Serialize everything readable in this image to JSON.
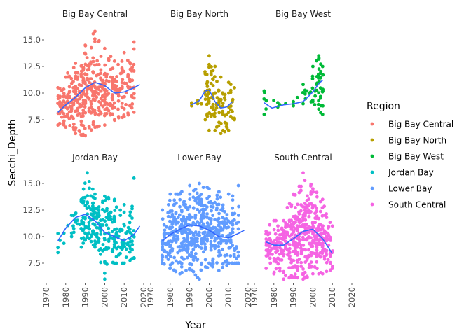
{
  "chart_data": {
    "type": "scatter",
    "xlabel": "Year",
    "ylabel": "Secchi_Depth",
    "xlim": [
      1967,
      2023
    ],
    "ylim": [
      5.5,
      16.3
    ],
    "x_ticks": [
      1970,
      1980,
      1990,
      2000,
      2010,
      2020
    ],
    "y_ticks": [
      7.5,
      10.0,
      12.5,
      15.0
    ],
    "y_tick_labels": [
      "7.5",
      "10.0",
      "12.5",
      "15.0"
    ],
    "smooth_color": "#3366FF",
    "legend": {
      "title": "Region",
      "position": "right"
    },
    "panels": [
      {
        "name": "Big Bay Central",
        "color": "#F8766D",
        "summary": [
          [
            1976,
            8.5,
            7.0,
            10.5,
            24
          ],
          [
            1980,
            9.0,
            6.8,
            11.5,
            45
          ],
          [
            1985,
            9.6,
            6.2,
            12.8,
            60
          ],
          [
            1990,
            10.2,
            6.0,
            14.5,
            90
          ],
          [
            1995,
            10.6,
            6.8,
            15.8,
            70
          ],
          [
            2000,
            10.3,
            7.0,
            14.2,
            55
          ],
          [
            2005,
            10.0,
            7.5,
            13.0,
            45
          ],
          [
            2010,
            10.2,
            7.8,
            13.8,
            40
          ],
          [
            2015,
            10.6,
            8.2,
            14.8,
            28
          ]
        ],
        "smooth": [
          [
            1976,
            8.2
          ],
          [
            1980,
            8.9
          ],
          [
            1985,
            9.6
          ],
          [
            1990,
            10.5
          ],
          [
            1995,
            11.0
          ],
          [
            2000,
            10.7
          ],
          [
            2005,
            10.0
          ],
          [
            2010,
            10.1
          ],
          [
            2015,
            10.5
          ],
          [
            2018,
            10.8
          ]
        ]
      },
      {
        "name": "Big Bay North",
        "color": "#B79F00",
        "summary": [
          [
            1991,
            8.9,
            8.8,
            9.0,
            2
          ],
          [
            1998,
            9.5,
            7.5,
            11.8,
            10
          ],
          [
            2000,
            10.0,
            6.5,
            13.5,
            30
          ],
          [
            2003,
            9.5,
            6.5,
            12.5,
            25
          ],
          [
            2006,
            8.8,
            6.2,
            11.5,
            22
          ],
          [
            2010,
            8.8,
            6.5,
            11.0,
            20
          ],
          [
            2013,
            9.0,
            7.5,
            10.5,
            8
          ]
        ],
        "smooth": [
          [
            1991,
            8.9
          ],
          [
            1995,
            9.3
          ],
          [
            1998,
            10.2
          ],
          [
            2000,
            10.3
          ],
          [
            2003,
            9.2
          ],
          [
            2006,
            8.6
          ],
          [
            2009,
            8.7
          ],
          [
            2012,
            9.2
          ]
        ]
      },
      {
        "name": "Big Bay West",
        "color": "#00BA38",
        "summary": [
          [
            1975,
            9.2,
            8.0,
            10.2,
            8
          ],
          [
            1982,
            8.9,
            8.7,
            9.1,
            2
          ],
          [
            1990,
            9.0,
            8.8,
            9.2,
            2
          ],
          [
            1995,
            9.8,
            9.0,
            10.8,
            3
          ],
          [
            2000,
            10.5,
            9.2,
            12.5,
            10
          ],
          [
            2003,
            11.0,
            8.5,
            13.5,
            25
          ],
          [
            2005,
            10.2,
            8.0,
            12.5,
            18
          ]
        ],
        "smooth": [
          [
            1975,
            9.1
          ],
          [
            1979,
            8.6
          ],
          [
            1985,
            8.9
          ],
          [
            1990,
            9.0
          ],
          [
            1995,
            9.2
          ],
          [
            2000,
            10.1
          ],
          [
            2003,
            10.9
          ],
          [
            2005,
            11.2
          ]
        ]
      },
      {
        "name": "Jordan Bay",
        "color": "#00BFC4",
        "summary": [
          [
            1976,
            9.0,
            8.5,
            10.3,
            5
          ],
          [
            1983,
            11.0,
            10.0,
            12.0,
            4
          ],
          [
            1988,
            11.8,
            9.0,
            13.5,
            20
          ],
          [
            1991,
            12.2,
            10.0,
            16.0,
            55
          ],
          [
            1995,
            11.5,
            9.0,
            14.0,
            45
          ],
          [
            2000,
            10.4,
            6.0,
            13.8,
            40
          ],
          [
            2005,
            10.2,
            7.5,
            13.5,
            50
          ],
          [
            2010,
            9.8,
            7.5,
            13.0,
            40
          ],
          [
            2015,
            10.5,
            8.0,
            15.5,
            30
          ]
        ],
        "smooth": [
          [
            1976,
            9.6
          ],
          [
            1980,
            10.8
          ],
          [
            1985,
            11.8
          ],
          [
            1990,
            12.1
          ],
          [
            1995,
            11.5
          ],
          [
            2000,
            10.4
          ],
          [
            2005,
            10.0
          ],
          [
            2010,
            9.6
          ],
          [
            2015,
            10.2
          ],
          [
            2018,
            11.0
          ]
        ]
      },
      {
        "name": "Lower Bay",
        "color": "#619CFF",
        "summary": [
          [
            1976,
            9.5,
            7.5,
            12.5,
            40
          ],
          [
            1980,
            10.2,
            7.0,
            14.0,
            70
          ],
          [
            1985,
            10.5,
            6.5,
            14.0,
            80
          ],
          [
            1990,
            10.8,
            7.0,
            14.8,
            90
          ],
          [
            1995,
            10.8,
            6.0,
            15.0,
            80
          ],
          [
            2000,
            10.5,
            7.5,
            14.5,
            70
          ],
          [
            2005,
            10.2,
            6.8,
            14.2,
            70
          ],
          [
            2010,
            10.0,
            7.5,
            14.0,
            60
          ],
          [
            2015,
            10.5,
            7.5,
            14.8,
            40
          ]
        ],
        "smooth": [
          [
            1976,
            9.6
          ],
          [
            1980,
            10.2
          ],
          [
            1985,
            10.7
          ],
          [
            1990,
            11.1
          ],
          [
            1995,
            11.0
          ],
          [
            2000,
            10.6
          ],
          [
            2005,
            10.0
          ],
          [
            2010,
            9.9
          ],
          [
            2015,
            10.3
          ],
          [
            2018,
            10.6
          ]
        ]
      },
      {
        "name": "South Central",
        "color": "#F564E3",
        "summary": [
          [
            1976,
            9.3,
            7.0,
            10.5,
            15
          ],
          [
            1980,
            9.0,
            6.5,
            11.5,
            50
          ],
          [
            1985,
            9.3,
            6.0,
            11.5,
            60
          ],
          [
            1990,
            9.8,
            6.2,
            14.0,
            90
          ],
          [
            1995,
            10.5,
            6.0,
            16.0,
            110
          ],
          [
            2000,
            10.8,
            6.5,
            14.5,
            90
          ],
          [
            2005,
            10.0,
            6.5,
            13.5,
            70
          ],
          [
            2010,
            8.8,
            7.0,
            11.0,
            30
          ]
        ],
        "smooth": [
          [
            1976,
            9.5
          ],
          [
            1980,
            9.2
          ],
          [
            1985,
            9.2
          ],
          [
            1990,
            9.8
          ],
          [
            1995,
            10.5
          ],
          [
            2000,
            10.7
          ],
          [
            2005,
            9.8
          ],
          [
            2010,
            8.4
          ]
        ]
      }
    ]
  }
}
